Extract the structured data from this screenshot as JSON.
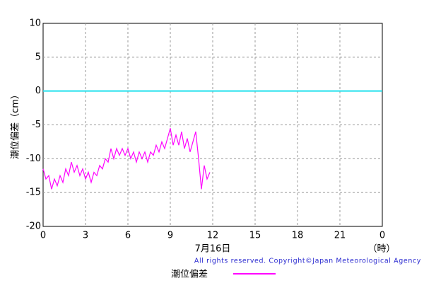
{
  "chart_data": {
    "type": "line",
    "y_label": "潮位偏差（cm）",
    "date_label": "7月16日",
    "x_unit": "（時）",
    "copyright": "All rights reserved. Copyright©Japan Meteorological Agency",
    "xlim": [
      0,
      24
    ],
    "xticks": [
      0,
      3,
      6,
      9,
      12,
      15,
      18,
      21,
      {
        "value": 24,
        "label": "0"
      }
    ],
    "ylim": [
      -20,
      10
    ],
    "yticks": [
      10,
      5,
      0,
      -5,
      -10,
      -15,
      -20
    ],
    "grid": true,
    "reference_line": {
      "value": 0,
      "color": "#22e0ee"
    },
    "x": [
      0,
      0.2,
      0.4,
      0.6,
      0.8,
      1.0,
      1.2,
      1.4,
      1.6,
      1.8,
      2.0,
      2.2,
      2.4,
      2.6,
      2.8,
      3.0,
      3.2,
      3.4,
      3.6,
      3.8,
      4.0,
      4.2,
      4.4,
      4.6,
      4.8,
      5.0,
      5.2,
      5.4,
      5.6,
      5.8,
      6.0,
      6.2,
      6.4,
      6.6,
      6.8,
      7.0,
      7.2,
      7.4,
      7.6,
      7.8,
      8.0,
      8.2,
      8.4,
      8.6,
      8.8,
      9.0,
      9.2,
      9.4,
      9.6,
      9.8,
      10.0,
      10.2,
      10.4,
      10.6,
      10.8,
      11.0,
      11.2,
      11.4,
      11.6,
      11.8
    ],
    "series": [
      {
        "name": "潮位偏差",
        "color": "#ff00ff",
        "values": [
          -11.5,
          -13,
          -12.5,
          -14.5,
          -13,
          -14,
          -12.5,
          -13.5,
          -11.5,
          -12.5,
          -10.5,
          -12,
          -11,
          -12.5,
          -11.5,
          -13,
          -12,
          -13.5,
          -12,
          -12.5,
          -11,
          -11.5,
          -10,
          -10.5,
          -8.5,
          -10,
          -8.5,
          -9.5,
          -8.5,
          -9.5,
          -8.5,
          -10,
          -9,
          -10.5,
          -9,
          -10,
          -9,
          -10.5,
          -9,
          -9.5,
          -8,
          -9,
          -7.5,
          -8.5,
          -7,
          -5.5,
          -8,
          -6.5,
          -8,
          -6,
          -8.5,
          -7,
          -9,
          -7.5,
          -6,
          -10,
          -14.5,
          -11,
          -13,
          -12
        ]
      }
    ]
  }
}
